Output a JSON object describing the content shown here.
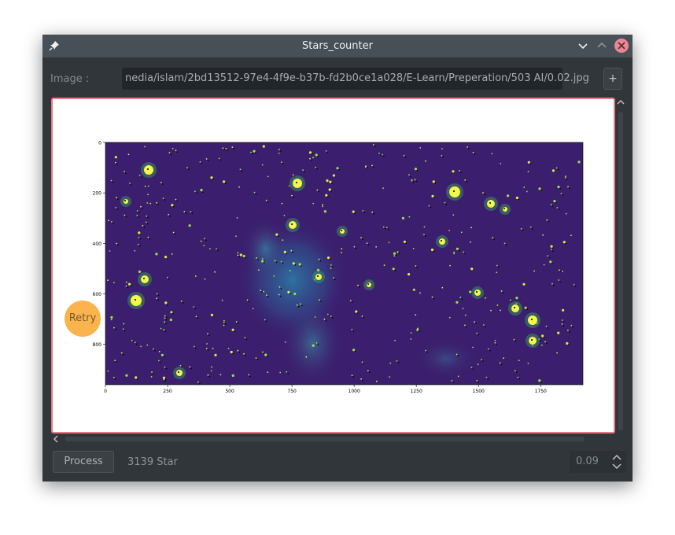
{
  "window": {
    "title": "Stars_counter"
  },
  "image_row": {
    "label": "Image :",
    "path_value": "nedia/islam/2bd13512-97e4-4f9e-b37b-fd2b0ce1a028/E-Learn/Preperation/503 AI/0.02.jpg",
    "add_label": "+"
  },
  "viewer": {
    "retry_label": "Retry",
    "plot": {
      "y_ticks": [
        "0",
        "200",
        "400",
        "600",
        "800"
      ],
      "x_ticks": [
        "0",
        "250",
        "500",
        "750",
        "1000",
        "1250",
        "1500",
        "1750"
      ],
      "background_color": "#3b1f6e",
      "nebula_color": "#2c7fb8",
      "star_color": "#d8f23a"
    }
  },
  "bottom": {
    "process_label": "Process",
    "result_text": "3139 Star",
    "threshold_value": "0.09"
  },
  "colors": {
    "window_bg": "#31363b",
    "titlebar_bg": "#475057",
    "close_button": "#ed8796",
    "viewer_border": "#e07b83",
    "retry_button": "#fbb34d"
  }
}
